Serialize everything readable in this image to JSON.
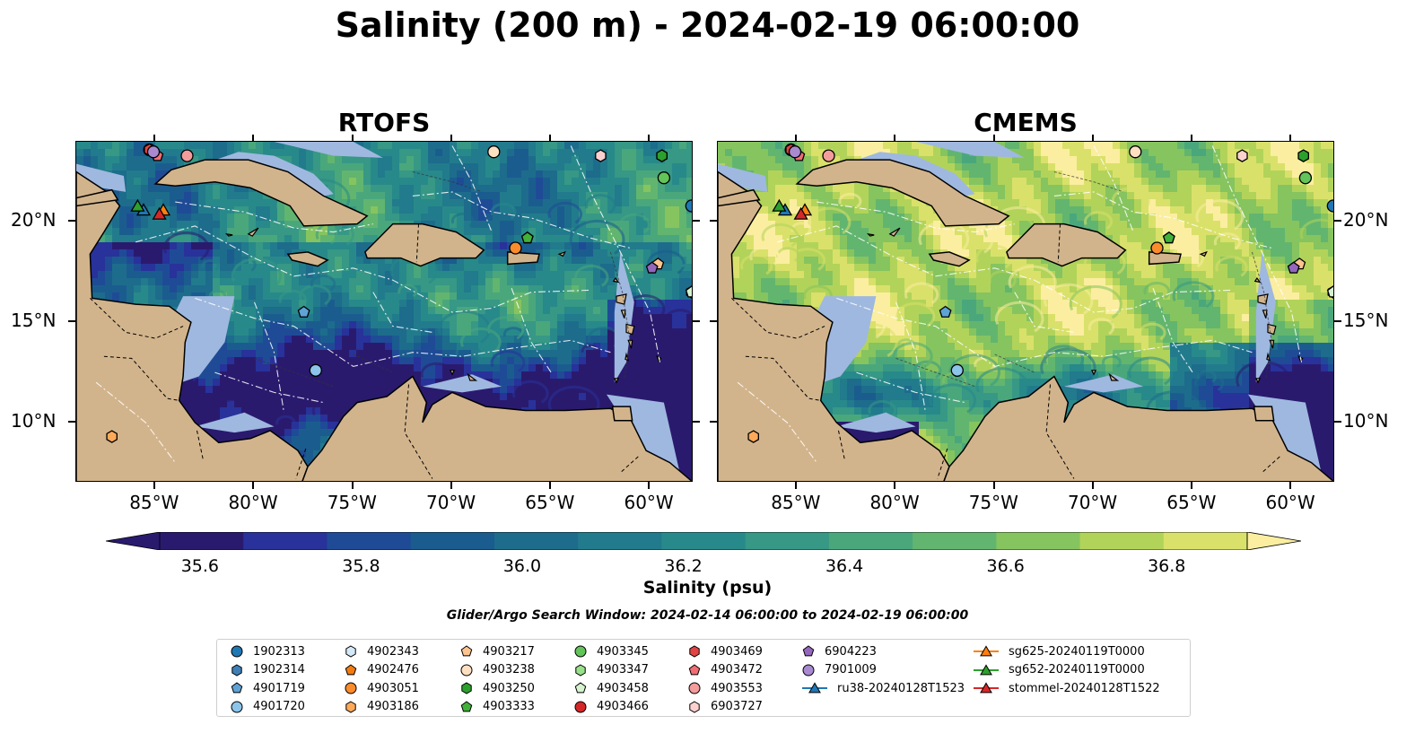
{
  "title": "Salinity (200 m) - 2024-02-19 06:00:00",
  "panels": [
    {
      "id": "rtofs",
      "title": "RTOFS"
    },
    {
      "id": "cmems",
      "title": "CMEMS"
    }
  ],
  "map": {
    "lon_range": [
      -89,
      -57.8
    ],
    "lat_range": [
      7,
      24
    ],
    "lon_ticks": [
      "85°W",
      "80°W",
      "75°W",
      "70°W",
      "65°W",
      "60°W"
    ],
    "lat_ticks": [
      "20°N",
      "15°N",
      "10°N"
    ],
    "colors": {
      "land": "#d2b48c",
      "shelf": "#9fb8e0",
      "coast": "#000000"
    }
  },
  "colorbar": {
    "label": "Salinity (psu)",
    "ticks": [
      "35.6",
      "35.8",
      "36.0",
      "36.2",
      "36.4",
      "36.6",
      "36.8"
    ],
    "range": [
      35.55,
      36.9
    ],
    "colors": [
      "#2a1a6e",
      "#28329a",
      "#1f4b96",
      "#1b5c8f",
      "#1d6c8c",
      "#217b8c",
      "#28898a",
      "#369885",
      "#4aa77c",
      "#62b56f",
      "#86c45f",
      "#b2d35a",
      "#d9e16a"
    ],
    "extend_low": "#2a1a6e",
    "extend_high": "#fbeea0"
  },
  "search_window": "Glider/Argo Search Window: 2024-02-14 06:00:00 to 2024-02-19 06:00:00",
  "legend": {
    "items": [
      {
        "label": "1902313",
        "marker": "circle",
        "color": "#1f77b4"
      },
      {
        "label": "1902314",
        "marker": "hexagon",
        "color": "#3f7fb5"
      },
      {
        "label": "4901719",
        "marker": "pentagon",
        "color": "#5fa2d6"
      },
      {
        "label": "4901720",
        "marker": "circle",
        "color": "#8cc4ea"
      },
      {
        "label": "4902343",
        "marker": "hexagon",
        "color": "#d5e8f8"
      },
      {
        "label": "4902476",
        "marker": "pentagon",
        "color": "#f27c10"
      },
      {
        "label": "4903051",
        "marker": "circle",
        "color": "#fb8c2c"
      },
      {
        "label": "4903186",
        "marker": "hexagon",
        "color": "#fca95a"
      },
      {
        "label": "4903217",
        "marker": "pentagon",
        "color": "#fdc48f"
      },
      {
        "label": "4903238",
        "marker": "circle",
        "color": "#fde0c2"
      },
      {
        "label": "4903250",
        "marker": "hexagon",
        "color": "#2ca02c"
      },
      {
        "label": "4903333",
        "marker": "pentagon",
        "color": "#41b13a"
      },
      {
        "label": "4903345",
        "marker": "circle",
        "color": "#62c459"
      },
      {
        "label": "4903347",
        "marker": "hexagon",
        "color": "#98df8a"
      },
      {
        "label": "4903458",
        "marker": "pentagon",
        "color": "#d6f3d0"
      },
      {
        "label": "4903466",
        "marker": "circle",
        "color": "#d62728"
      },
      {
        "label": "4903469",
        "marker": "hexagon",
        "color": "#e04444"
      },
      {
        "label": "4903472",
        "marker": "pentagon",
        "color": "#f06e73"
      },
      {
        "label": "4903553",
        "marker": "circle",
        "color": "#f39c9c"
      },
      {
        "label": "6903727",
        "marker": "hexagon",
        "color": "#fbd0cf"
      },
      {
        "label": "6904223",
        "marker": "pentagon",
        "color": "#9467bd"
      },
      {
        "label": "7901009",
        "marker": "circle",
        "color": "#a98ad0"
      },
      {
        "label": "ru38-20240128T1523",
        "marker": "triangle-line",
        "color": "#1f77b4"
      },
      {
        "label": "sg625-20240119T0000",
        "marker": "triangle-line",
        "color": "#ff7f0e"
      },
      {
        "label": "sg652-20240119T0000",
        "marker": "triangle-line",
        "color": "#2ca02c"
      },
      {
        "label": "stommel-20240128T1522",
        "marker": "triangle-line",
        "color": "#d62728"
      }
    ]
  },
  "platforms": [
    {
      "label": "1902313",
      "lon": -57.9,
      "lat": 20.8
    },
    {
      "label": "1902314",
      "lon": -59.4,
      "lat": 23.3
    },
    {
      "label": "4901719",
      "lon": -77.5,
      "lat": 15.5
    },
    {
      "label": "4901720",
      "lon": -76.9,
      "lat": 12.6
    },
    {
      "label": "4902343",
      "lon": -67.9,
      "lat": 23.5
    },
    {
      "label": "4902476",
      "lon": -66.2,
      "lat": 19.2
    },
    {
      "label": "4903051",
      "lon": -66.8,
      "lat": 18.7
    },
    {
      "label": "4903186",
      "lon": -87.2,
      "lat": 9.3
    },
    {
      "label": "4903217",
      "lon": -59.6,
      "lat": 17.9
    },
    {
      "label": "4903238",
      "lon": -67.9,
      "lat": 23.5
    },
    {
      "label": "4903250",
      "lon": -59.4,
      "lat": 23.3
    },
    {
      "label": "4903333",
      "lon": -66.2,
      "lat": 19.2
    },
    {
      "label": "4903345",
      "lon": -59.3,
      "lat": 22.2
    },
    {
      "label": "4903347",
      "lon": -57.9,
      "lat": 16.5
    },
    {
      "label": "4903458",
      "lon": -57.9,
      "lat": 16.5
    },
    {
      "label": "4903466",
      "lon": -85.3,
      "lat": 23.6
    },
    {
      "label": "4903469",
      "lon": -85.3,
      "lat": 23.6
    },
    {
      "label": "4903472",
      "lon": -84.9,
      "lat": 23.3
    },
    {
      "label": "4903553",
      "lon": -83.4,
      "lat": 23.3
    },
    {
      "label": "6903727",
      "lon": -62.5,
      "lat": 23.3
    },
    {
      "label": "6904223",
      "lon": -59.9,
      "lat": 17.7
    },
    {
      "label": "7901009",
      "lon": -85.1,
      "lat": 23.5
    },
    {
      "label": "ru38-20240128T1523",
      "lon": -85.6,
      "lat": 20.6
    },
    {
      "label": "sg625-20240119T0000",
      "lon": -84.6,
      "lat": 20.6
    },
    {
      "label": "sg652-20240119T0000",
      "lon": -85.9,
      "lat": 20.8
    },
    {
      "label": "stommel-20240128T1522",
      "lon": -84.8,
      "lat": 20.4
    }
  ]
}
